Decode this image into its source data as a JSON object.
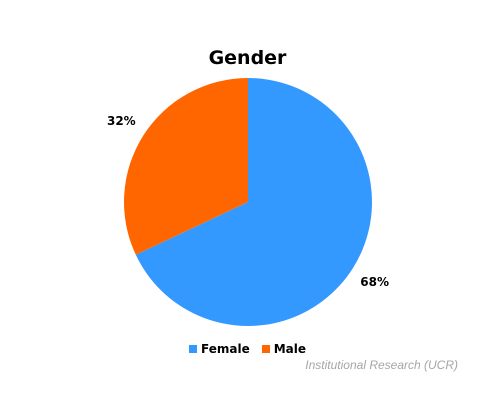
{
  "chart_data": {
    "type": "pie",
    "title": "Gender",
    "slices": [
      {
        "name": "Female",
        "value": 68,
        "label": "68%",
        "color": "#3399ff"
      },
      {
        "name": "Male",
        "value": 32,
        "label": "32%",
        "color": "#ff6600"
      }
    ],
    "legend_position": "bottom",
    "start_angle_deg": 0,
    "direction": "clockwise"
  },
  "footer": {
    "source": "Institutional Research (UCR)"
  }
}
